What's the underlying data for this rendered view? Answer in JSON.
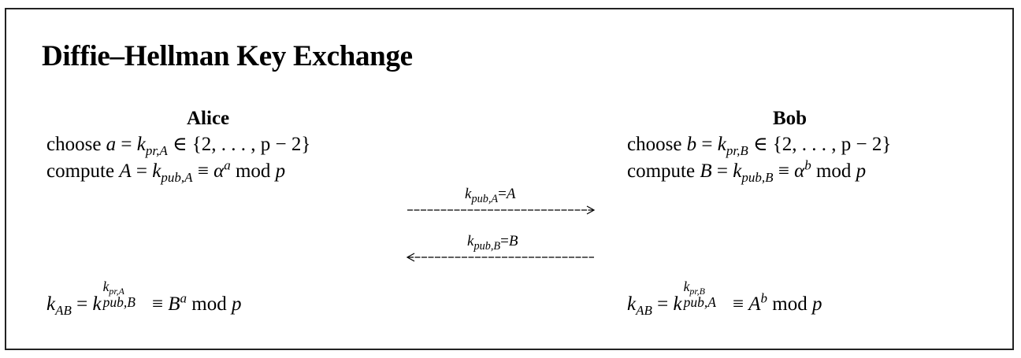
{
  "title": "Diffie–Hellman Key Exchange",
  "alice": {
    "name": "Alice",
    "choose": {
      "verb": "choose",
      "var": "a",
      "eq": " = ",
      "k": "k",
      "sub": "pr,A",
      "set": " ∈ {2, . . . , p − 2}"
    },
    "compute": {
      "verb": "compute",
      "var": "A",
      "eq": " = ",
      "k": "k",
      "sub": "pub,A",
      "cong": " ≡ ",
      "base": "α",
      "exp": "a",
      "mod": " mod ",
      "p": "p"
    },
    "result": {
      "lhs_k": "k",
      "lhs_sub": "AB",
      "eq": " = ",
      "k": "k",
      "sup": "k",
      "sup_sub": "pr,A",
      "sub": "pub,B",
      "cong": " ≡ ",
      "base": "B",
      "exp": "a",
      "mod": " mod ",
      "p": "p"
    }
  },
  "bob": {
    "name": "Bob",
    "choose": {
      "verb": "choose",
      "var": "b",
      "eq": " = ",
      "k": "k",
      "sub": "pr,B",
      "set": " ∈ {2, . . . , p − 2}"
    },
    "compute": {
      "verb": "compute",
      "var": "B",
      "eq": " = ",
      "k": "k",
      "sub": "pub,B",
      "cong": " ≡ ",
      "base": "α",
      "exp": "b",
      "mod": " mod ",
      "p": "p"
    },
    "result": {
      "lhs_k": "k",
      "lhs_sub": "AB",
      "eq": " = ",
      "k": "k",
      "sup": "k",
      "sup_sub": "pr,B",
      "sub": "pub,A",
      "cong": " ≡ ",
      "base": "A",
      "exp": "b",
      "mod": " mod ",
      "p": "p"
    }
  },
  "messages": [
    {
      "k": "k",
      "sub": "pub,A",
      "eq": "=",
      "val": "A",
      "direction": "right"
    },
    {
      "k": "k",
      "sub": "pub,B",
      "eq": "=",
      "val": "B",
      "direction": "left"
    }
  ]
}
